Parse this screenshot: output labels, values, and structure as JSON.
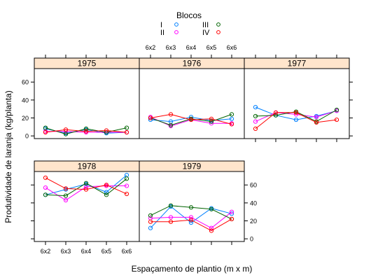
{
  "chart_data": {
    "type": "line",
    "title": "",
    "xlabel": "Espaçamento de plantio (m x m)",
    "ylabel": "Produtividade de laranja (kg/planta)",
    "legend": {
      "title": "Blocos",
      "position": "top",
      "entries": [
        "I",
        "II",
        "III",
        "IV"
      ]
    },
    "categories": [
      "6x2",
      "6x3",
      "6x4",
      "6x5",
      "6x6"
    ],
    "ylim": [
      -3,
      75
    ],
    "yticks": [
      0,
      20,
      40,
      60
    ],
    "grid": false,
    "colors": {
      "I": "#0080ff",
      "II": "#ff00ff",
      "III": "#006400",
      "IV": "#ff0000",
      "strip": "#ffe5cc"
    },
    "panels": [
      {
        "year": "1975",
        "series": [
          {
            "name": "I",
            "values": [
              8,
              3,
              7,
              3,
              4
            ]
          },
          {
            "name": "II",
            "values": [
              5,
              5,
              4,
              4,
              4
            ]
          },
          {
            "name": "III",
            "values": [
              9,
              2,
              8,
              4,
              9
            ]
          },
          {
            "name": "IV",
            "values": [
              4,
              7,
              5,
              6,
              4
            ]
          }
        ]
      },
      {
        "year": "1976",
        "series": [
          {
            "name": "I",
            "values": [
              18,
              16,
              21,
              17,
              19
            ]
          },
          {
            "name": "II",
            "values": [
              21,
              11,
              18,
              14,
              14
            ]
          },
          {
            "name": "III",
            "values": [
              20,
              12,
              19,
              16,
              24
            ]
          },
          {
            "name": "IV",
            "values": [
              20,
              24,
              18,
              19,
              13
            ]
          }
        ]
      },
      {
        "year": "1977",
        "series": [
          {
            "name": "I",
            "values": [
              32,
              23,
              18,
              22,
              28
            ]
          },
          {
            "name": "II",
            "values": [
              16,
              26,
              24,
              21,
              28
            ]
          },
          {
            "name": "III",
            "values": [
              22,
              23,
              27,
              16,
              29
            ]
          },
          {
            "name": "IV",
            "values": [
              8,
              26,
              26,
              15,
              18
            ]
          }
        ]
      },
      {
        "year": "1978",
        "series": [
          {
            "name": "I",
            "values": [
              49,
              55,
              61,
              52,
              71
            ]
          },
          {
            "name": "II",
            "values": [
              57,
              43,
              58,
              59,
              59
            ]
          },
          {
            "name": "III",
            "values": [
              49,
              48,
              62,
              49,
              67
            ]
          },
          {
            "name": "IV",
            "values": [
              68,
              56,
              55,
              60,
              50
            ]
          }
        ]
      },
      {
        "year": "1979",
        "series": [
          {
            "name": "I",
            "values": [
              12,
              36,
              18,
              34,
              28
            ]
          },
          {
            "name": "II",
            "values": [
              23,
              24,
              24,
              12,
              30
            ]
          },
          {
            "name": "III",
            "values": [
              26,
              37,
              35,
              33,
              22
            ]
          },
          {
            "name": "IV",
            "values": [
              19,
              19,
              21,
              9,
              22
            ]
          }
        ]
      }
    ]
  }
}
